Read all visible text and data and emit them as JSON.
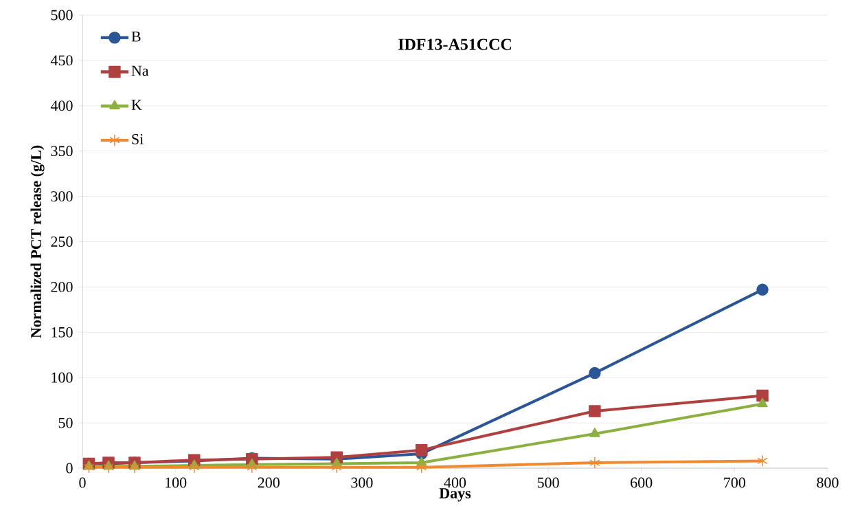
{
  "chart_data": {
    "type": "line",
    "title": "IDF13-A51CCC",
    "xlabel": "Days",
    "ylabel": "Normalized  PCT release (g/L)",
    "x": [
      7,
      28,
      56,
      120,
      182,
      273,
      364,
      550,
      730
    ],
    "series": [
      {
        "name": "B",
        "color": "#2a5597",
        "marker": "circle",
        "values": [
          5,
          5,
          6,
          8,
          11,
          10,
          16,
          105,
          197
        ]
      },
      {
        "name": "Na",
        "color": "#b04040",
        "marker": "square",
        "values": [
          5,
          6,
          6,
          9,
          10,
          12,
          20,
          63,
          80
        ]
      },
      {
        "name": "K",
        "color": "#8cb040",
        "marker": "triangle",
        "values": [
          2,
          2,
          2,
          3,
          4,
          5,
          6,
          38,
          71
        ]
      },
      {
        "name": "Si",
        "color": "#f08a30",
        "marker": "cross",
        "values": [
          1,
          1,
          1,
          1,
          1,
          1,
          1,
          6,
          8
        ]
      }
    ],
    "xlim": [
      0,
      800
    ],
    "xticks": [
      0,
      100,
      200,
      300,
      400,
      500,
      600,
      700,
      800
    ],
    "ylim": [
      0,
      500
    ],
    "yticks": [
      0,
      50,
      100,
      150,
      200,
      250,
      300,
      350,
      400,
      450,
      500
    ],
    "grid": "y",
    "legend": "top left",
    "line_style": "solid"
  }
}
